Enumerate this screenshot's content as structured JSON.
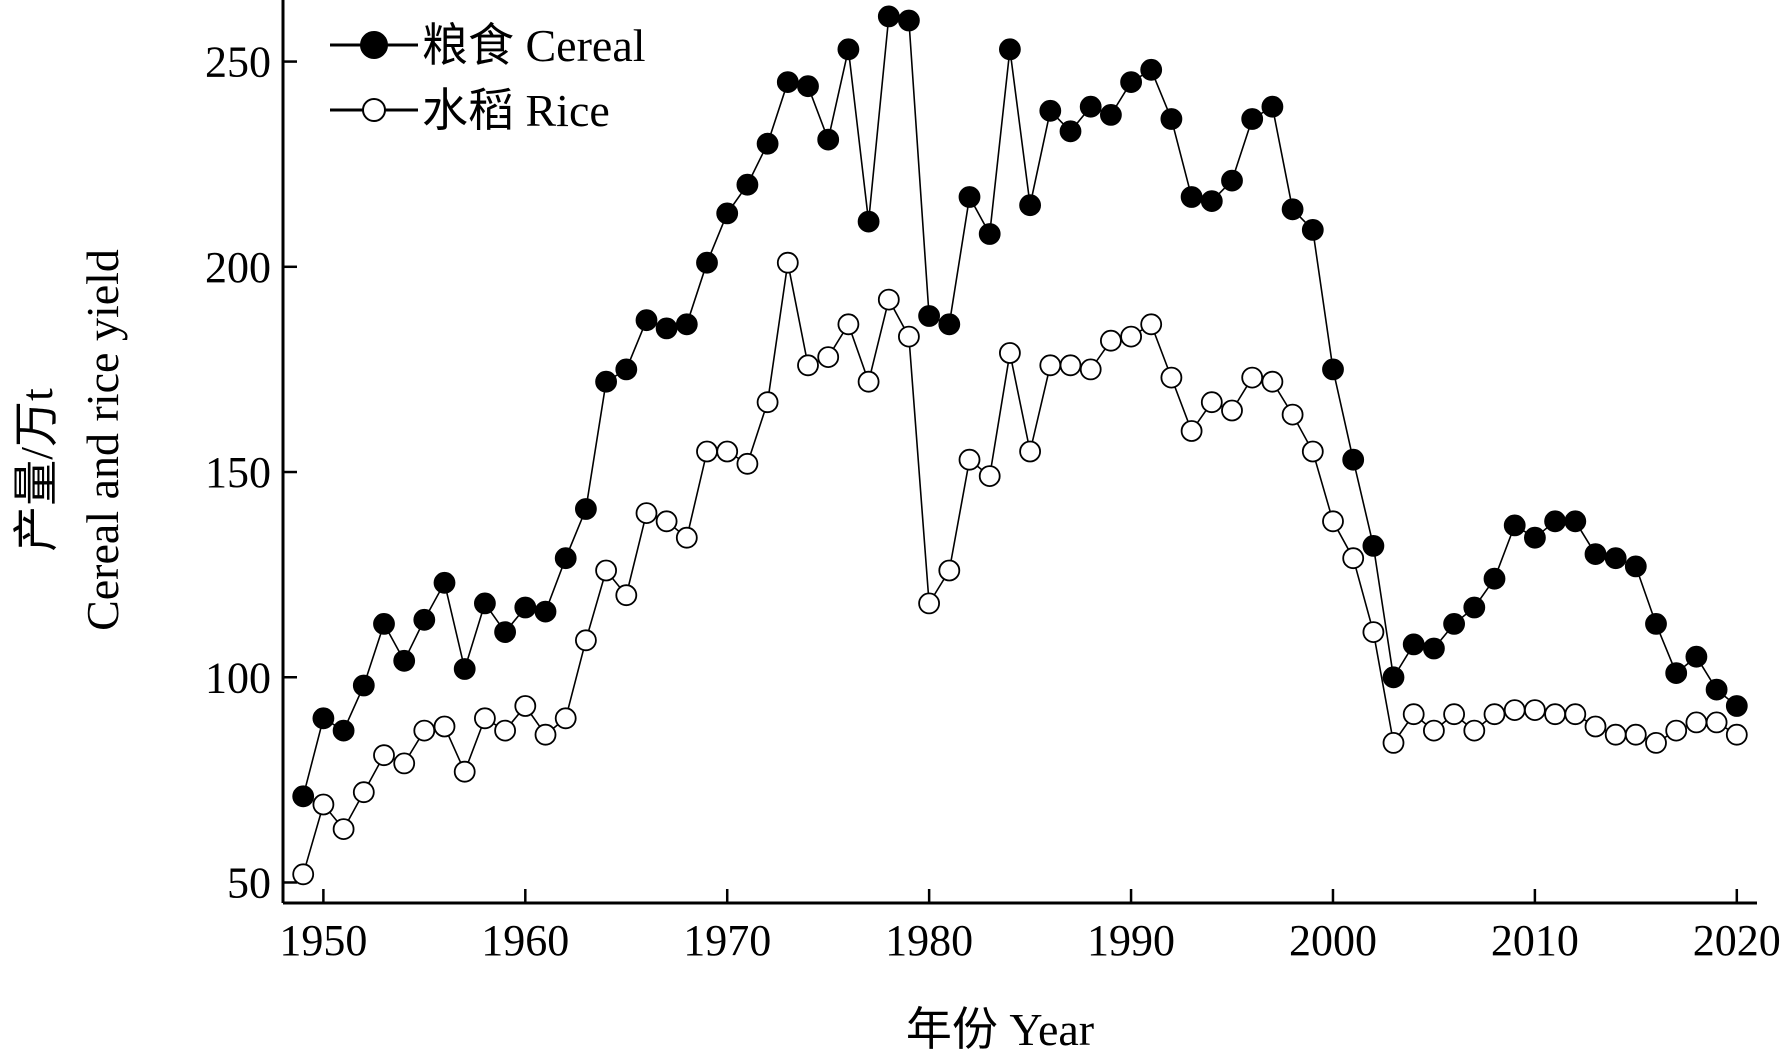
{
  "chart_data": {
    "type": "line",
    "xlabel": "年份 Year",
    "ylabel": [
      "产量/万t",
      "Cereal and rice yield"
    ],
    "xlim": [
      1948,
      2021
    ],
    "ylim": [
      45,
      265
    ],
    "xticks": [
      1950,
      1960,
      1970,
      1980,
      1990,
      2000,
      2010,
      2020
    ],
    "yticks": [
      50,
      100,
      150,
      200,
      250
    ],
    "legend_position": "top-left",
    "grid": false,
    "x": [
      1949,
      1950,
      1951,
      1952,
      1953,
      1954,
      1955,
      1956,
      1957,
      1958,
      1959,
      1960,
      1961,
      1962,
      1963,
      1964,
      1965,
      1966,
      1967,
      1968,
      1969,
      1970,
      1971,
      1972,
      1973,
      1974,
      1975,
      1976,
      1977,
      1978,
      1979,
      1980,
      1981,
      1982,
      1983,
      1984,
      1985,
      1986,
      1987,
      1988,
      1989,
      1990,
      1991,
      1992,
      1993,
      1994,
      1995,
      1996,
      1997,
      1998,
      1999,
      2000,
      2001,
      2002,
      2003,
      2004,
      2005,
      2006,
      2007,
      2008,
      2009,
      2010,
      2011,
      2012,
      2013,
      2014,
      2015,
      2016,
      2017,
      2018,
      2019,
      2020
    ],
    "series": [
      {
        "name": "粮食 Cereal",
        "marker": "filled-circle",
        "values": [
          71,
          90,
          87,
          98,
          113,
          104,
          114,
          123,
          102,
          118,
          111,
          117,
          116,
          129,
          141,
          172,
          175,
          187,
          185,
          186,
          201,
          213,
          220,
          230,
          245,
          244,
          231,
          253,
          211,
          261,
          260,
          188,
          186,
          217,
          208,
          253,
          215,
          238,
          233,
          239,
          237,
          245,
          248,
          236,
          217,
          216,
          221,
          236,
          239,
          214,
          209,
          175,
          153,
          132,
          100,
          108,
          107,
          113,
          117,
          124,
          137,
          134,
          138,
          138,
          130,
          129,
          127,
          113,
          101,
          105,
          97,
          93
        ]
      },
      {
        "name": "水稻 Rice",
        "marker": "open-circle",
        "values": [
          52,
          69,
          63,
          72,
          81,
          79,
          87,
          88,
          77,
          90,
          87,
          93,
          86,
          90,
          109,
          126,
          120,
          140,
          138,
          134,
          155,
          155,
          152,
          167,
          201,
          176,
          178,
          186,
          172,
          192,
          183,
          118,
          126,
          153,
          149,
          179,
          155,
          176,
          176,
          175,
          182,
          183,
          186,
          173,
          160,
          167,
          165,
          173,
          172,
          164,
          155,
          138,
          129,
          111,
          84,
          91,
          87,
          91,
          87,
          91,
          92,
          92,
          91,
          91,
          88,
          86,
          86,
          84,
          87,
          89,
          89,
          86
        ]
      }
    ]
  }
}
